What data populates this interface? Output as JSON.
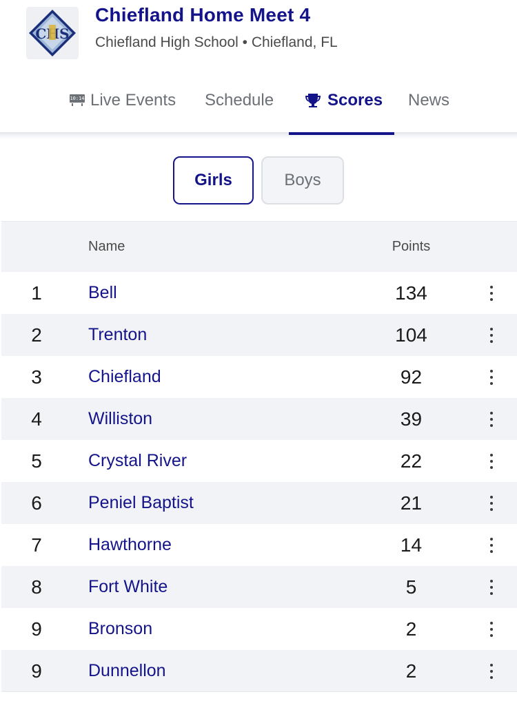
{
  "meet": {
    "title": "Chiefland Home Meet 4",
    "subtitle": "Chiefland High School • Chiefland, FL",
    "logo_text": "CHS"
  },
  "tabs": [
    {
      "label": "Live Events",
      "icon": "live-tv-icon",
      "clock": "10:14",
      "active": false
    },
    {
      "label": "Schedule",
      "active": false
    },
    {
      "label": "Scores",
      "icon": "trophy-icon",
      "active": true
    },
    {
      "label": "News",
      "active": false
    }
  ],
  "toggle": {
    "girls_label": "Girls",
    "boys_label": "Boys",
    "selected": "Girls"
  },
  "table": {
    "headers": {
      "name": "Name",
      "points": "Points"
    },
    "rows": [
      {
        "rank": "1",
        "name": "Bell",
        "points": "134"
      },
      {
        "rank": "2",
        "name": "Trenton",
        "points": "104"
      },
      {
        "rank": "3",
        "name": "Chiefland",
        "points": "92"
      },
      {
        "rank": "4",
        "name": "Williston",
        "points": "39"
      },
      {
        "rank": "5",
        "name": "Crystal River",
        "points": "22"
      },
      {
        "rank": "6",
        "name": "Peniel Baptist",
        "points": "21"
      },
      {
        "rank": "7",
        "name": "Hawthorne",
        "points": "14"
      },
      {
        "rank": "8",
        "name": "Fort White",
        "points": "5"
      },
      {
        "rank": "9",
        "name": "Bronson",
        "points": "2"
      },
      {
        "rank": "9",
        "name": "Dunnellon",
        "points": "2"
      }
    ]
  },
  "colors": {
    "accent": "#14148a",
    "muted_text": "#6b6f76",
    "stripe": "#f2f3f6"
  }
}
